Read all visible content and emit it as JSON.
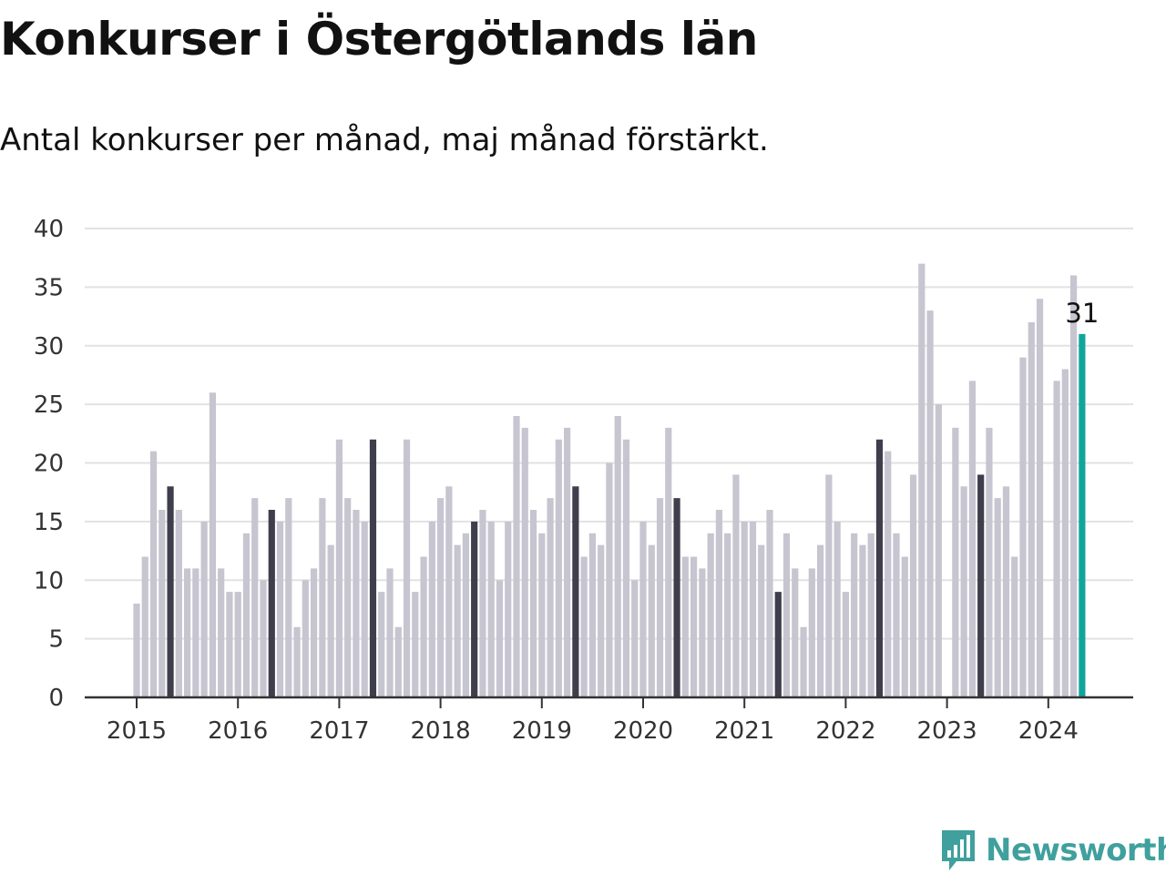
{
  "title": "Konkurser i Östergötlands län",
  "subtitle": "Antal konkurser per månad, maj månad förstärkt.",
  "brand": {
    "name": "Newsworthy",
    "color": "#3fa09d"
  },
  "colors": {
    "default_bar": "#c6c5d0",
    "highlight_bar": "#3f3e4c",
    "latest_bar": "#10a59c",
    "grid": "#e2e2e2",
    "axis": "#333333"
  },
  "chart_data": {
    "type": "bar",
    "title": "Konkurser i Östergötlands län",
    "subtitle": "Antal konkurser per månad, maj månad förstärkt.",
    "xlabel": "",
    "ylabel": "",
    "ylim": [
      0,
      40
    ],
    "yticks": [
      0,
      5,
      10,
      15,
      20,
      25,
      30,
      35,
      40
    ],
    "grid": true,
    "x_tick_labels": [
      "2015",
      "2016",
      "2017",
      "2018",
      "2019",
      "2020",
      "2021",
      "2022",
      "2023",
      "2024"
    ],
    "highlight_month": "maj",
    "latest_label": "31",
    "series": [
      {
        "values": [
          [
            8,
            12,
            21,
            16,
            18,
            16,
            11,
            11,
            15,
            26,
            11,
            9
          ],
          [
            9,
            14,
            17,
            10,
            16,
            15,
            17,
            6,
            10,
            11,
            17,
            13
          ],
          [
            22,
            17,
            16,
            15,
            22,
            9,
            11,
            6,
            22,
            9,
            12,
            15
          ],
          [
            17,
            18,
            13,
            14,
            15,
            16,
            15,
            10,
            15,
            24,
            23,
            16
          ],
          [
            14,
            17,
            22,
            23,
            18,
            12,
            14,
            13,
            20,
            24,
            22,
            10
          ],
          [
            15,
            13,
            17,
            23,
            17,
            12,
            12,
            11,
            14,
            16,
            14,
            19
          ],
          [
            15,
            15,
            13,
            16,
            9,
            14,
            11,
            6,
            11,
            13,
            19,
            15
          ],
          [
            9,
            14,
            13,
            14,
            22,
            21,
            14,
            12,
            19,
            37,
            33,
            25
          ],
          [
            0,
            23,
            18,
            27,
            19,
            23,
            17,
            18,
            12,
            29,
            32,
            34
          ],
          [
            0,
            27,
            28,
            36,
            31
          ]
        ]
      }
    ]
  }
}
